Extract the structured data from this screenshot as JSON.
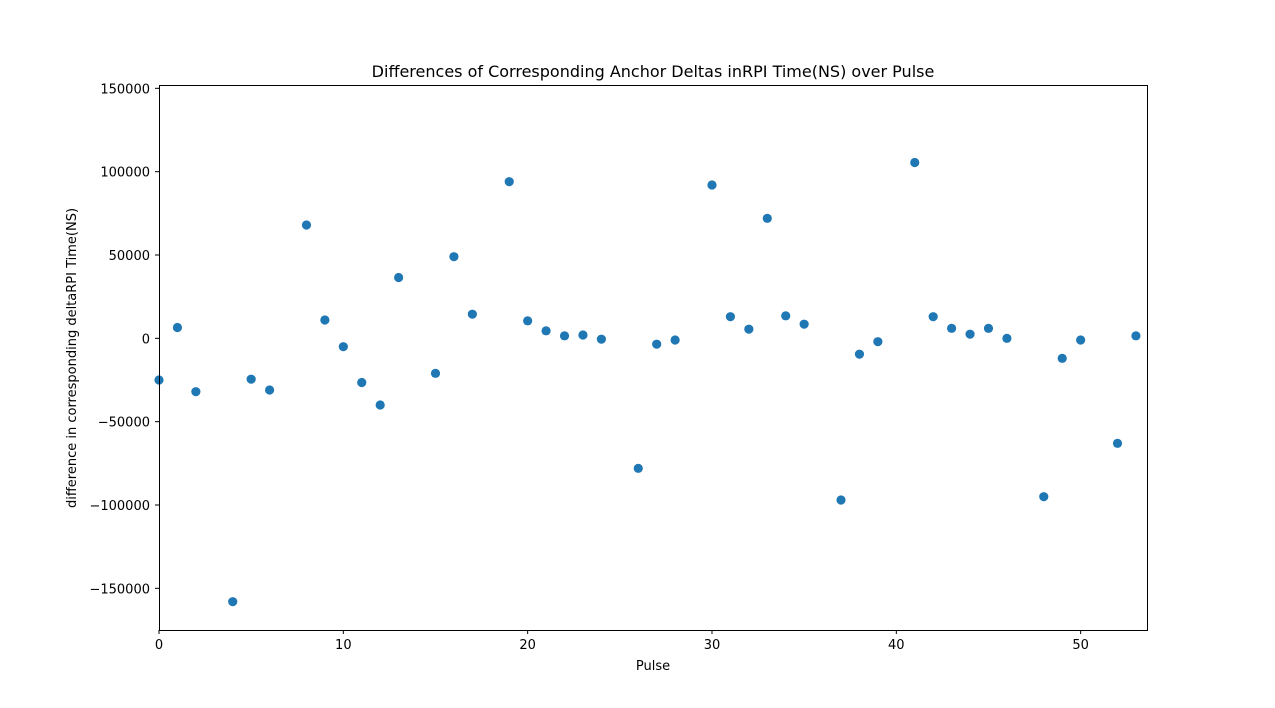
{
  "chart_data": {
    "type": "scatter",
    "title": "Differences of Corresponding Anchor Deltas inRPI Time(NS) over Pulse",
    "xlabel": "Pulse",
    "ylabel": "difference in corresponding deltaRPI Time(NS)",
    "xlim": [
      0,
      53.6
    ],
    "ylim": [
      -175000,
      152000
    ],
    "xticks": [
      0,
      10,
      20,
      30,
      40,
      50
    ],
    "yticks": [
      -150000,
      -100000,
      -50000,
      0,
      50000,
      100000,
      150000
    ],
    "xtick_labels": [
      "0",
      "10",
      "20",
      "30",
      "40",
      "50"
    ],
    "ytick_labels": [
      "−150000",
      "−100000",
      "−50000",
      "0",
      "50000",
      "100000",
      "150000"
    ],
    "grid": false,
    "marker_color": "#1f77b4",
    "series": [
      {
        "x": [
          0,
          1,
          2,
          4,
          5,
          6,
          8,
          9,
          10,
          11,
          12,
          13,
          15,
          16,
          17,
          19,
          20,
          21,
          22,
          23,
          24,
          26,
          27,
          28,
          30,
          31,
          32,
          33,
          34,
          35,
          37,
          38,
          39,
          41,
          42,
          43,
          44,
          45,
          46,
          48,
          49,
          50,
          52,
          53
        ],
        "y": [
          -25000,
          6500,
          -32000,
          -158000,
          -24500,
          -31000,
          68000,
          11000,
          -5000,
          -26500,
          -40000,
          36500,
          -21000,
          49000,
          14500,
          94000,
          10500,
          4500,
          1500,
          2000,
          -500,
          -78000,
          -3500,
          -1000,
          92000,
          13000,
          5500,
          72000,
          13500,
          8500,
          -97000,
          -9500,
          -2000,
          105500,
          13000,
          6000,
          2500,
          6000,
          0,
          -95000,
          -12000,
          -1000,
          -63000,
          1500
        ]
      }
    ]
  }
}
